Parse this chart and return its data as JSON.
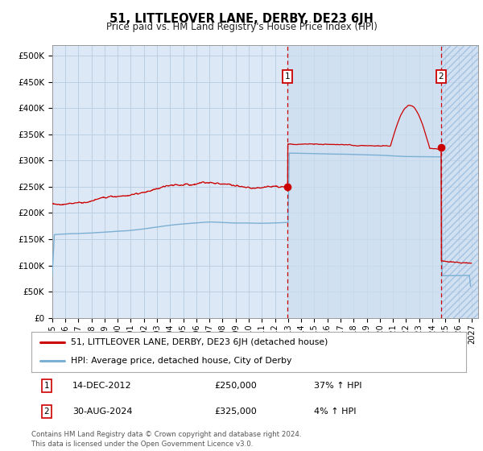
{
  "title": "51, LITTLEOVER LANE, DERBY, DE23 6JH",
  "subtitle": "Price paid vs. HM Land Registry's House Price Index (HPI)",
  "ylabel_ticks": [
    "£0",
    "£50K",
    "£100K",
    "£150K",
    "£200K",
    "£250K",
    "£300K",
    "£350K",
    "£400K",
    "£450K",
    "£500K"
  ],
  "ytick_values": [
    0,
    50000,
    100000,
    150000,
    200000,
    250000,
    300000,
    350000,
    400000,
    450000,
    500000
  ],
  "ylim": [
    0,
    520000
  ],
  "xlim_start": 1995.0,
  "xlim_end": 2027.5,
  "hpi_color": "#7bafd4",
  "price_color": "#cc0000",
  "bg_color": "#dce8f5",
  "bg_color2": "#c8dcf0",
  "grid_color": "#b8cce0",
  "sale1_x": 2012.96,
  "sale1_y": 250000,
  "sale2_x": 2024.67,
  "sale2_y": 325000,
  "legend_line1": "51, LITTLEOVER LANE, DERBY, DE23 6JH (detached house)",
  "legend_line2": "HPI: Average price, detached house, City of Derby",
  "annot1_date": "14-DEC-2012",
  "annot1_price": "£250,000",
  "annot1_hpi": "37% ↑ HPI",
  "annot2_date": "30-AUG-2024",
  "annot2_price": "£325,000",
  "annot2_hpi": "4% ↑ HPI",
  "footer": "Contains HM Land Registry data © Crown copyright and database right 2024.\nThis data is licensed under the Open Government Licence v3.0.",
  "xtick_years": [
    1995,
    1996,
    1997,
    1998,
    1999,
    2000,
    2001,
    2002,
    2003,
    2004,
    2005,
    2006,
    2007,
    2008,
    2009,
    2010,
    2011,
    2012,
    2013,
    2014,
    2015,
    2016,
    2017,
    2018,
    2019,
    2020,
    2021,
    2022,
    2023,
    2024,
    2025,
    2026,
    2027
  ]
}
